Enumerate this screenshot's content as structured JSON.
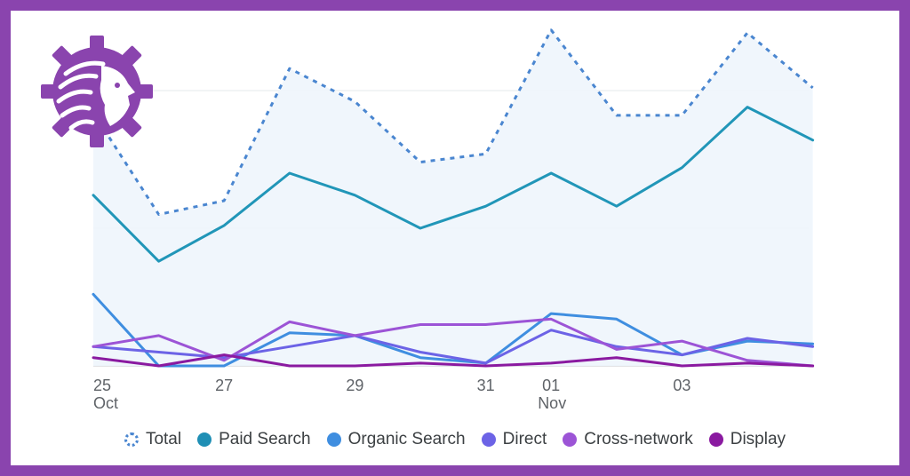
{
  "chart_data": {
    "type": "line",
    "x": [
      "Oct 25",
      "Oct 26",
      "Oct 27",
      "Oct 28",
      "Oct 29",
      "Oct 30",
      "Oct 31",
      "Nov 01",
      "Nov 02",
      "Nov 03",
      "Nov 04",
      "Nov 05"
    ],
    "x_tick_labels": [
      {
        "index": 0,
        "day": "25",
        "month": "Oct"
      },
      {
        "index": 2,
        "day": "27",
        "month": ""
      },
      {
        "index": 4,
        "day": "29",
        "month": ""
      },
      {
        "index": 6,
        "day": "31",
        "month": ""
      },
      {
        "index": 7,
        "day": "01",
        "month": "Nov"
      },
      {
        "index": 9,
        "day": "03",
        "month": ""
      }
    ],
    "ylim": [
      0,
      100
    ],
    "gridlines": [
      50,
      100
    ],
    "series": [
      {
        "name": "Total",
        "style": "dotted",
        "area": true,
        "color": "#4a86d0",
        "values": [
          92,
          55,
          60,
          108,
          96,
          74,
          77,
          122,
          91,
          91,
          121,
          101
        ]
      },
      {
        "name": "Paid Search",
        "style": "solid",
        "color": "#2196b8",
        "values": [
          62,
          38,
          51,
          70,
          62,
          50,
          58,
          70,
          58,
          72,
          94,
          82
        ]
      },
      {
        "name": "Organic Search",
        "style": "solid",
        "color": "#3f8ee0",
        "values": [
          26,
          0,
          0,
          12,
          11,
          3,
          1,
          19,
          17,
          4,
          9,
          8
        ]
      },
      {
        "name": "Direct",
        "style": "solid",
        "color": "#6c63e6",
        "values": [
          7,
          5,
          3,
          7,
          11,
          5,
          1,
          13,
          7,
          4,
          10,
          7
        ]
      },
      {
        "name": "Cross-network",
        "style": "solid",
        "color": "#9c54d6",
        "values": [
          7,
          11,
          2,
          16,
          11,
          15,
          15,
          17,
          6,
          9,
          2,
          0
        ]
      },
      {
        "name": "Display",
        "style": "solid",
        "color": "#8a1aa0",
        "values": [
          3,
          0,
          4,
          0,
          0,
          1,
          0,
          1,
          3,
          0,
          1,
          0
        ]
      }
    ]
  },
  "legend": {
    "items": [
      {
        "label": "Total",
        "color": "#4a86d0",
        "dotted": true
      },
      {
        "label": "Paid Search",
        "color": "#1f8fb5",
        "dotted": false
      },
      {
        "label": "Organic Search",
        "color": "#3f8ee0",
        "dotted": false
      },
      {
        "label": "Direct",
        "color": "#6c63e6",
        "dotted": false
      },
      {
        "label": "Cross-network",
        "color": "#9c54d6",
        "dotted": false
      },
      {
        "label": "Display",
        "color": "#8a1aa0",
        "dotted": false
      }
    ]
  },
  "logo": {
    "icon": "lion-gear-logo-icon",
    "color": "#8a44ae"
  },
  "frame": {
    "border_color": "#8a44ae"
  }
}
